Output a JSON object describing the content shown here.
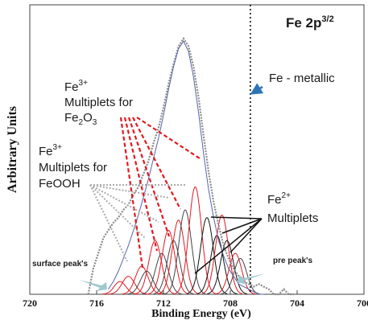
{
  "chart_data": {
    "type": "line",
    "title": "Fe 2p",
    "title_sup": "3/2",
    "xlabel": "Binding Energy (eV)",
    "ylabel": "Arbitrary Units",
    "x_reversed": true,
    "xlim": [
      720,
      700
    ],
    "ylim": [
      0,
      1
    ],
    "grid": false,
    "xticks": [
      720,
      716,
      712,
      708,
      704,
      700
    ],
    "xtick_labels": [
      "720",
      "716",
      "712",
      "708",
      "704",
      "700"
    ],
    "vline_x": 706.8,
    "series": [
      {
        "kind": "measured",
        "x": [
          716.5,
          716.2,
          715.9,
          715.6,
          715.3,
          715.0,
          714.7,
          714.4,
          714.1,
          713.8,
          713.5,
          713.2,
          712.9,
          712.6,
          712.3,
          712.0,
          711.7,
          711.4,
          711.1,
          710.8,
          710.5,
          710.2,
          709.9,
          709.6,
          709.3,
          709.0,
          708.7,
          708.4,
          708.1,
          707.8,
          707.5,
          707.2,
          706.9,
          706.6,
          706.3,
          706.0,
          705.7,
          705.4,
          705.1,
          704.8,
          704.5,
          704.2
        ],
        "y": [
          0.0,
          0.1,
          0.16,
          0.22,
          0.25,
          0.28,
          0.3,
          0.33,
          0.35,
          0.39,
          0.42,
          0.47,
          0.52,
          0.59,
          0.65,
          0.73,
          0.82,
          0.9,
          0.97,
          1.0,
          0.97,
          0.89,
          0.77,
          0.62,
          0.48,
          0.36,
          0.27,
          0.19,
          0.14,
          0.1,
          0.07,
          0.05,
          0.04,
          0.03,
          0.04,
          0.03,
          0.02,
          0.0,
          0.0,
          0.02,
          0.0,
          0.0
        ]
      },
      {
        "kind": "envelope",
        "x": [
          715.3,
          715.0,
          714.7,
          714.4,
          714.1,
          713.8,
          713.5,
          713.2,
          712.9,
          712.6,
          712.3,
          712.0,
          711.7,
          711.4,
          711.1,
          710.8,
          710.5,
          710.2,
          709.9,
          709.6,
          709.3,
          709.0,
          708.7,
          708.4,
          708.1,
          707.8,
          707.5,
          707.2,
          706.9,
          706.6,
          706.3,
          706.0
        ],
        "y": [
          0.02,
          0.05,
          0.09,
          0.14,
          0.19,
          0.25,
          0.31,
          0.38,
          0.45,
          0.53,
          0.61,
          0.7,
          0.8,
          0.89,
          0.96,
          0.99,
          0.95,
          0.85,
          0.71,
          0.55,
          0.41,
          0.3,
          0.21,
          0.15,
          0.1,
          0.07,
          0.04,
          0.03,
          0.02,
          0.01,
          0.0,
          0.0
        ]
      }
    ],
    "components": [
      {
        "center": 714.6,
        "height": 0.05,
        "width": 0.35,
        "color": "#e3181f"
      },
      {
        "center": 714.1,
        "height": 0.07,
        "width": 0.38,
        "color": "#e3181f"
      },
      {
        "center": 713.3,
        "height": 0.11,
        "width": 0.38,
        "color": "#e3181f"
      },
      {
        "center": 713.0,
        "height": 0.09,
        "width": 0.38,
        "color": "#444444"
      },
      {
        "center": 712.5,
        "height": 0.21,
        "width": 0.38,
        "color": "#e3181f"
      },
      {
        "center": 712.1,
        "height": 0.16,
        "width": 0.38,
        "color": "#444444"
      },
      {
        "center": 711.7,
        "height": 0.25,
        "width": 0.38,
        "color": "#e3181f"
      },
      {
        "center": 711.4,
        "height": 0.21,
        "width": 0.38,
        "color": "#444444"
      },
      {
        "center": 711.1,
        "height": 0.29,
        "width": 0.38,
        "color": "#e3181f"
      },
      {
        "center": 710.7,
        "height": 0.33,
        "width": 0.38,
        "color": "#444444"
      },
      {
        "center": 710.1,
        "height": 0.42,
        "width": 0.38,
        "color": "#e3181f"
      },
      {
        "center": 709.4,
        "height": 0.3,
        "width": 0.38,
        "color": "#111111"
      },
      {
        "center": 708.8,
        "height": 0.23,
        "width": 0.38,
        "color": "#111111"
      },
      {
        "center": 708.5,
        "height": 0.31,
        "width": 0.38,
        "color": "#e3181f"
      },
      {
        "center": 708.2,
        "height": 0.21,
        "width": 0.38,
        "color": "#111111"
      },
      {
        "center": 707.7,
        "height": 0.16,
        "width": 0.38,
        "color": "#e3181f"
      },
      {
        "center": 707.4,
        "height": 0.14,
        "width": 0.38,
        "color": "#444444"
      }
    ],
    "annotations": {
      "fe_metallic": "Fe - metallic",
      "fe3_oxide_ion": "Fe",
      "fe3_oxide_sup": "3+",
      "fe3_oxide_line2": "Multiplets for",
      "fe3_oxide_line3a": "Fe",
      "fe3_oxide_sub1": "2",
      "fe3_oxide_line3b": "O",
      "fe3_oxide_sub2": "3",
      "fe3_ooh_ion": "Fe",
      "fe3_ooh_sup": "3+",
      "fe3_ooh_line2": "Multiplets for",
      "fe3_ooh_line3": "FeOOH",
      "fe2_ion": "Fe",
      "fe2_sup": "2+",
      "fe2_line2": "Multiplets",
      "surface_peaks": "surface peak's",
      "pre_peaks": "pre peak's"
    },
    "colors": {
      "measured": "#8a8a8a",
      "envelope": "#5a63a8",
      "fe2o3": "#e3181f",
      "feooh": "#444444",
      "fe2": "#111111",
      "arrow_blue": "#2e75b6",
      "arrow_lightblue": "#9fc9cf"
    }
  }
}
